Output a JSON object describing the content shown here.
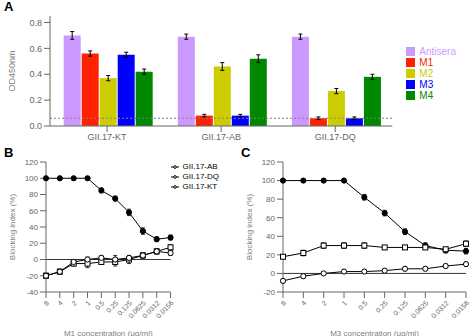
{
  "chart_data": [
    {
      "type": "bar",
      "title": "A",
      "categories": [
        "GII.17-KT",
        "GII.17-AB",
        "GII.17-DQ"
      ],
      "series": [
        {
          "name": "Antisera",
          "color": "#cc99ff",
          "values": [
            0.7,
            0.69,
            0.69
          ],
          "errors": [
            0.03,
            0.02,
            0.02
          ]
        },
        {
          "name": "M1",
          "color": "#ff2200",
          "values": [
            0.56,
            0.08,
            0.06
          ],
          "errors": [
            0.02,
            0.01,
            0.01
          ]
        },
        {
          "name": "M2",
          "color": "#cccc00",
          "values": [
            0.37,
            0.46,
            0.27
          ],
          "errors": [
            0.02,
            0.03,
            0.02
          ]
        },
        {
          "name": "M3",
          "color": "#0000ff",
          "values": [
            0.55,
            0.08,
            0.06
          ],
          "errors": [
            0.02,
            0.01,
            0.01
          ]
        },
        {
          "name": "M4",
          "color": "#008800",
          "values": [
            0.42,
            0.52,
            0.38
          ],
          "errors": [
            0.02,
            0.03,
            0.02
          ]
        }
      ],
      "ylabel": "OD450nm",
      "ylim": [
        0.0,
        0.85
      ],
      "yticks": [
        {
          "value": 0.0,
          "label": "0.0"
        },
        0.2,
        0.4,
        0.6,
        0.8
      ],
      "reference_lines": [
        0.06
      ],
      "legend": "right"
    },
    {
      "type": "line",
      "title": "B",
      "categories": [
        "8",
        "4",
        "2",
        "1",
        "0.5",
        "0.25",
        "0.125",
        "0.0625",
        "0.0312",
        "0.0156"
      ],
      "series": [
        {
          "name": "GII.17-KT",
          "color": "#000000",
          "marker": "filled_circle",
          "values": [
            100,
            100,
            100,
            100,
            85,
            75,
            58,
            35,
            25,
            27
          ],
          "errors": [
            1,
            1,
            1,
            1,
            3,
            3,
            4,
            4,
            3,
            3
          ]
        },
        {
          "name": "GII.17-AB",
          "color": "#000000",
          "marker": "open_square",
          "values": [
            -20,
            -15,
            -5,
            -5,
            -3,
            -3,
            0,
            5,
            10,
            15
          ],
          "errors": [
            3,
            3,
            3,
            5,
            3,
            5,
            5,
            3,
            3,
            3
          ]
        },
        {
          "name": "GII.17-DQ",
          "color": "#000000",
          "marker": "open_circle",
          "values": [
            -20,
            -15,
            -3,
            0,
            2,
            0,
            2,
            5,
            10,
            8
          ],
          "errors": [
            3,
            3,
            3,
            3,
            3,
            5,
            3,
            3,
            3,
            3
          ]
        }
      ],
      "xlabel": "M1 concentration (μg/ml)",
      "ylabel": "Blocking index (%)",
      "ylim": [
        -40,
        120
      ],
      "yticks": [
        -40,
        -20,
        0,
        20,
        40,
        60,
        80,
        100,
        120
      ],
      "reference_lines": [
        0
      ],
      "legend": "upper right"
    },
    {
      "type": "line",
      "title": "C",
      "categories": [
        "8",
        "4",
        "2",
        "1",
        "0.5",
        "0.25",
        "0.125",
        "0.0625",
        "0.0312",
        "0.0156"
      ],
      "series": [
        {
          "name": "GII.17-KT",
          "color": "#000000",
          "marker": "filled_circle",
          "values": [
            100,
            100,
            100,
            100,
            82,
            65,
            45,
            30,
            25,
            24
          ],
          "errors": [
            1,
            1,
            1,
            1,
            3,
            3,
            3,
            3,
            3,
            3
          ]
        },
        {
          "name": "GII.17-AB",
          "color": "#000000",
          "marker": "open_square",
          "values": [
            18,
            22,
            30,
            30,
            30,
            28,
            28,
            28,
            26,
            32
          ],
          "errors": [
            2,
            3,
            3,
            3,
            3,
            2,
            2,
            2,
            2,
            3
          ]
        },
        {
          "name": "GII.17-DQ",
          "color": "#000000",
          "marker": "open_circle",
          "values": [
            -8,
            -3,
            0,
            2,
            2,
            3,
            5,
            5,
            8,
            10
          ],
          "errors": [
            2,
            2,
            2,
            2,
            2,
            2,
            2,
            2,
            2,
            2
          ]
        }
      ],
      "xlabel": "M3 concentration (μg/ml)",
      "ylabel": "Blocking index (%)",
      "ylim": [
        -20,
        120
      ],
      "yticks": [
        -20,
        0,
        20,
        40,
        60,
        80,
        100,
        120
      ],
      "reference_lines": [
        0
      ]
    }
  ]
}
